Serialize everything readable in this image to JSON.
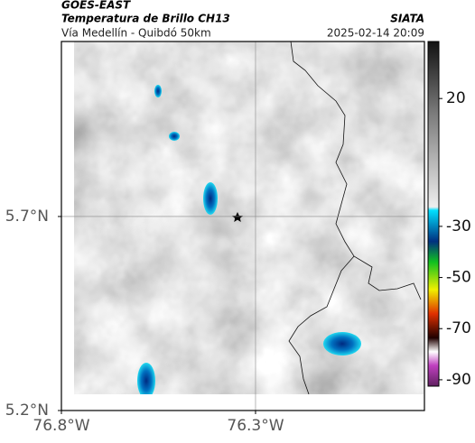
{
  "header": {
    "title": "GOES-EAST",
    "subtitle": "Temperatura de Brillo CH13",
    "region": "Vía Medellín - Quibdó 50km",
    "source": "SIATA",
    "datetime": "2025-02-14 20:09"
  },
  "map": {
    "xlim": [
      -76.8,
      -75.865
    ],
    "ylim": [
      5.2,
      6.151
    ],
    "xticks": [
      {
        "value": -76.8,
        "label": "76.8°W"
      },
      {
        "value": -76.3,
        "label": "76.3°W"
      }
    ],
    "yticks": [
      {
        "value": 5.7,
        "label": "5.7°N"
      },
      {
        "value": 5.2,
        "label": "5.2°N"
      }
    ],
    "grid": true
  },
  "colorbar": {
    "lim": [
      -92.5,
      42.3
    ],
    "ticks": [
      20,
      -30,
      -50,
      -70,
      -90
    ]
  }
}
